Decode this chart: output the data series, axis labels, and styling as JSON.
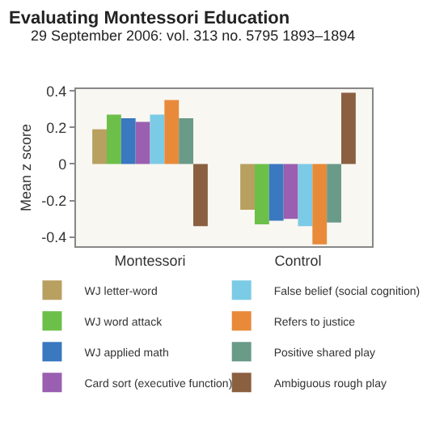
{
  "chart_data": {
    "type": "bar",
    "title": "Evaluating Montessori Education",
    "subtitle": "29 September 2006: vol. 313 no. 5795 1893–1894",
    "ylabel": "Mean z score",
    "categories": [
      "Montessori",
      "Control"
    ],
    "series": [
      {
        "name": "WJ letter-word",
        "color": "#b8a060",
        "values": [
          0.19,
          -0.25
        ]
      },
      {
        "name": "WJ word attack",
        "color": "#6cc04a",
        "values": [
          0.27,
          -0.33
        ]
      },
      {
        "name": "WJ applied math",
        "color": "#3a78c0",
        "values": [
          0.25,
          -0.31
        ]
      },
      {
        "name": "Card sort (executive function)",
        "color": "#9a5fb0",
        "values": [
          0.23,
          -0.3
        ]
      },
      {
        "name": "False belief (social cognition)",
        "color": "#7ccbe6",
        "values": [
          0.27,
          -0.34
        ]
      },
      {
        "name": "Refers to justice",
        "color": "#e88a3a",
        "values": [
          0.35,
          -0.44
        ]
      },
      {
        "name": "Positive shared play",
        "color": "#6a9a88",
        "values": [
          0.25,
          -0.32
        ]
      },
      {
        "name": "Ambiguous rough play",
        "color": "#8a6040",
        "values": [
          -0.34,
          0.39
        ]
      }
    ],
    "ylim": [
      -0.45,
      0.41
    ],
    "yticks": [
      -0.4,
      -0.2,
      0,
      0.2,
      0.4
    ],
    "grid": false,
    "legend": "bottom"
  }
}
